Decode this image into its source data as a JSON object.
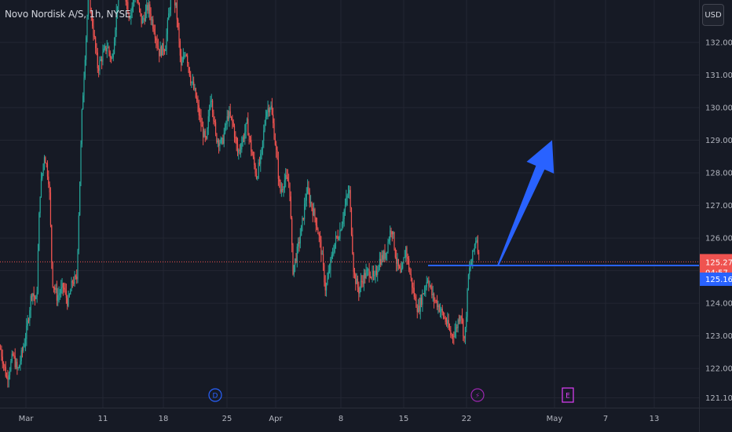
{
  "header": {
    "title": "Novo Nordisk A/S, 1h, NYSE",
    "currency_button": "USD"
  },
  "colors": {
    "background": "#161a25",
    "grid": "#232632",
    "up": "#26a69a",
    "down": "#ef5350",
    "price_line": "#ef5350",
    "horizontal_line": "#2962ff",
    "arrow": "#2962ff",
    "event_dividend": "#2962ff",
    "event_split": "#9c27b0",
    "event_earnings": "#e040fb"
  },
  "chart_data": {
    "type": "candlestick",
    "ylim": [
      120.8,
      133.3
    ],
    "y_ticks": [
      121.1,
      122.0,
      123.0,
      124.0,
      125.0,
      126.0,
      127.0,
      128.0,
      129.0,
      130.0,
      131.0,
      132.0
    ],
    "y_tick_labels": [
      "121.10",
      "122.00",
      "123.00",
      "124.00",
      "125.00",
      "126.00",
      "127.00",
      "128.00",
      "129.00",
      "130.00",
      "131.00",
      "132.00"
    ],
    "x_ticks": [
      {
        "label": "Mar",
        "bar": 33
      },
      {
        "label": "11",
        "bar": 131
      },
      {
        "label": "18",
        "bar": 208
      },
      {
        "label": "25",
        "bar": 289
      },
      {
        "label": "Apr",
        "bar": 351
      },
      {
        "label": "8",
        "bar": 434
      },
      {
        "label": "15",
        "bar": 514
      },
      {
        "label": "22",
        "bar": 594
      },
      {
        "label": "May",
        "bar": 706
      },
      {
        "label": "7",
        "bar": 771
      },
      {
        "label": "13",
        "bar": 833
      }
    ],
    "last_price": 125.27,
    "countdown": "04:57",
    "line_price": 125.16,
    "horizontal_line": {
      "price": 125.16,
      "from_bar": 545
    },
    "arrow": {
      "from": {
        "bar": 634,
        "price": 125.16
      },
      "to": {
        "bar": 703,
        "price": 129.0
      }
    },
    "events": [
      {
        "type": "dividend",
        "label": "D",
        "bar": 274
      },
      {
        "type": "split",
        "label": "⚡",
        "bar": 608
      },
      {
        "type": "earnings",
        "label": "E",
        "bar": 723
      }
    ],
    "price_path": [
      [
        0,
        122.6
      ],
      [
        8,
        121.7
      ],
      [
        16,
        122.4
      ],
      [
        22,
        121.9
      ],
      [
        33,
        123.1
      ],
      [
        40,
        124.4
      ],
      [
        46,
        124.0
      ],
      [
        50,
        127.3
      ],
      [
        56,
        128.6
      ],
      [
        62,
        127.7
      ],
      [
        66,
        124.7
      ],
      [
        72,
        124.2
      ],
      [
        80,
        124.5
      ],
      [
        86,
        124.0
      ],
      [
        92,
        124.7
      ],
      [
        97,
        124.7
      ],
      [
        104,
        130.0
      ],
      [
        112,
        133.5
      ],
      [
        118,
        132.4
      ],
      [
        124,
        131.2
      ],
      [
        130,
        131.6
      ],
      [
        136,
        131.9
      ],
      [
        142,
        131.4
      ],
      [
        150,
        133.5
      ],
      [
        156,
        133.9
      ],
      [
        164,
        132.8
      ],
      [
        172,
        133.5
      ],
      [
        180,
        132.6
      ],
      [
        188,
        133.1
      ],
      [
        196,
        132.4
      ],
      [
        202,
        131.7
      ],
      [
        210,
        131.9
      ],
      [
        218,
        133.7
      ],
      [
        224,
        133.0
      ],
      [
        230,
        131.2
      ],
      [
        236,
        131.8
      ],
      [
        242,
        130.9
      ],
      [
        248,
        130.4
      ],
      [
        256,
        129.4
      ],
      [
        262,
        128.9
      ],
      [
        268,
        130.5
      ],
      [
        274,
        129.1
      ],
      [
        282,
        128.9
      ],
      [
        290,
        129.8
      ],
      [
        296,
        129.5
      ],
      [
        302,
        128.6
      ],
      [
        308,
        129.0
      ],
      [
        314,
        129.5
      ],
      [
        320,
        128.6
      ],
      [
        326,
        127.9
      ],
      [
        332,
        128.5
      ],
      [
        338,
        129.9
      ],
      [
        344,
        130.1
      ],
      [
        350,
        128.9
      ],
      [
        356,
        127.4
      ],
      [
        362,
        127.8
      ],
      [
        368,
        127.7
      ],
      [
        372,
        125.0
      ],
      [
        378,
        125.6
      ],
      [
        384,
        126.4
      ],
      [
        390,
        127.5
      ],
      [
        396,
        127.0
      ],
      [
        402,
        126.5
      ],
      [
        408,
        125.7
      ],
      [
        414,
        124.4
      ],
      [
        420,
        125.2
      ],
      [
        426,
        125.9
      ],
      [
        432,
        126.2
      ],
      [
        438,
        126.9
      ],
      [
        444,
        127.5
      ],
      [
        450,
        124.9
      ],
      [
        456,
        124.4
      ],
      [
        462,
        124.8
      ],
      [
        470,
        125.0
      ],
      [
        476,
        124.7
      ],
      [
        482,
        125.3
      ],
      [
        490,
        125.5
      ],
      [
        498,
        126.4
      ],
      [
        504,
        125.3
      ],
      [
        510,
        124.8
      ],
      [
        516,
        125.7
      ],
      [
        522,
        124.8
      ],
      [
        528,
        124.1
      ],
      [
        532,
        123.8
      ],
      [
        538,
        124.3
      ],
      [
        544,
        124.8
      ],
      [
        550,
        124.2
      ],
      [
        556,
        124.0
      ],
      [
        562,
        123.7
      ],
      [
        568,
        123.4
      ],
      [
        574,
        123.0
      ],
      [
        580,
        123.2
      ],
      [
        586,
        123.8
      ],
      [
        591,
        122.8
      ],
      [
        596,
        124.9
      ],
      [
        600,
        125.3
      ],
      [
        606,
        126.1
      ],
      [
        610,
        125.27
      ]
    ]
  }
}
